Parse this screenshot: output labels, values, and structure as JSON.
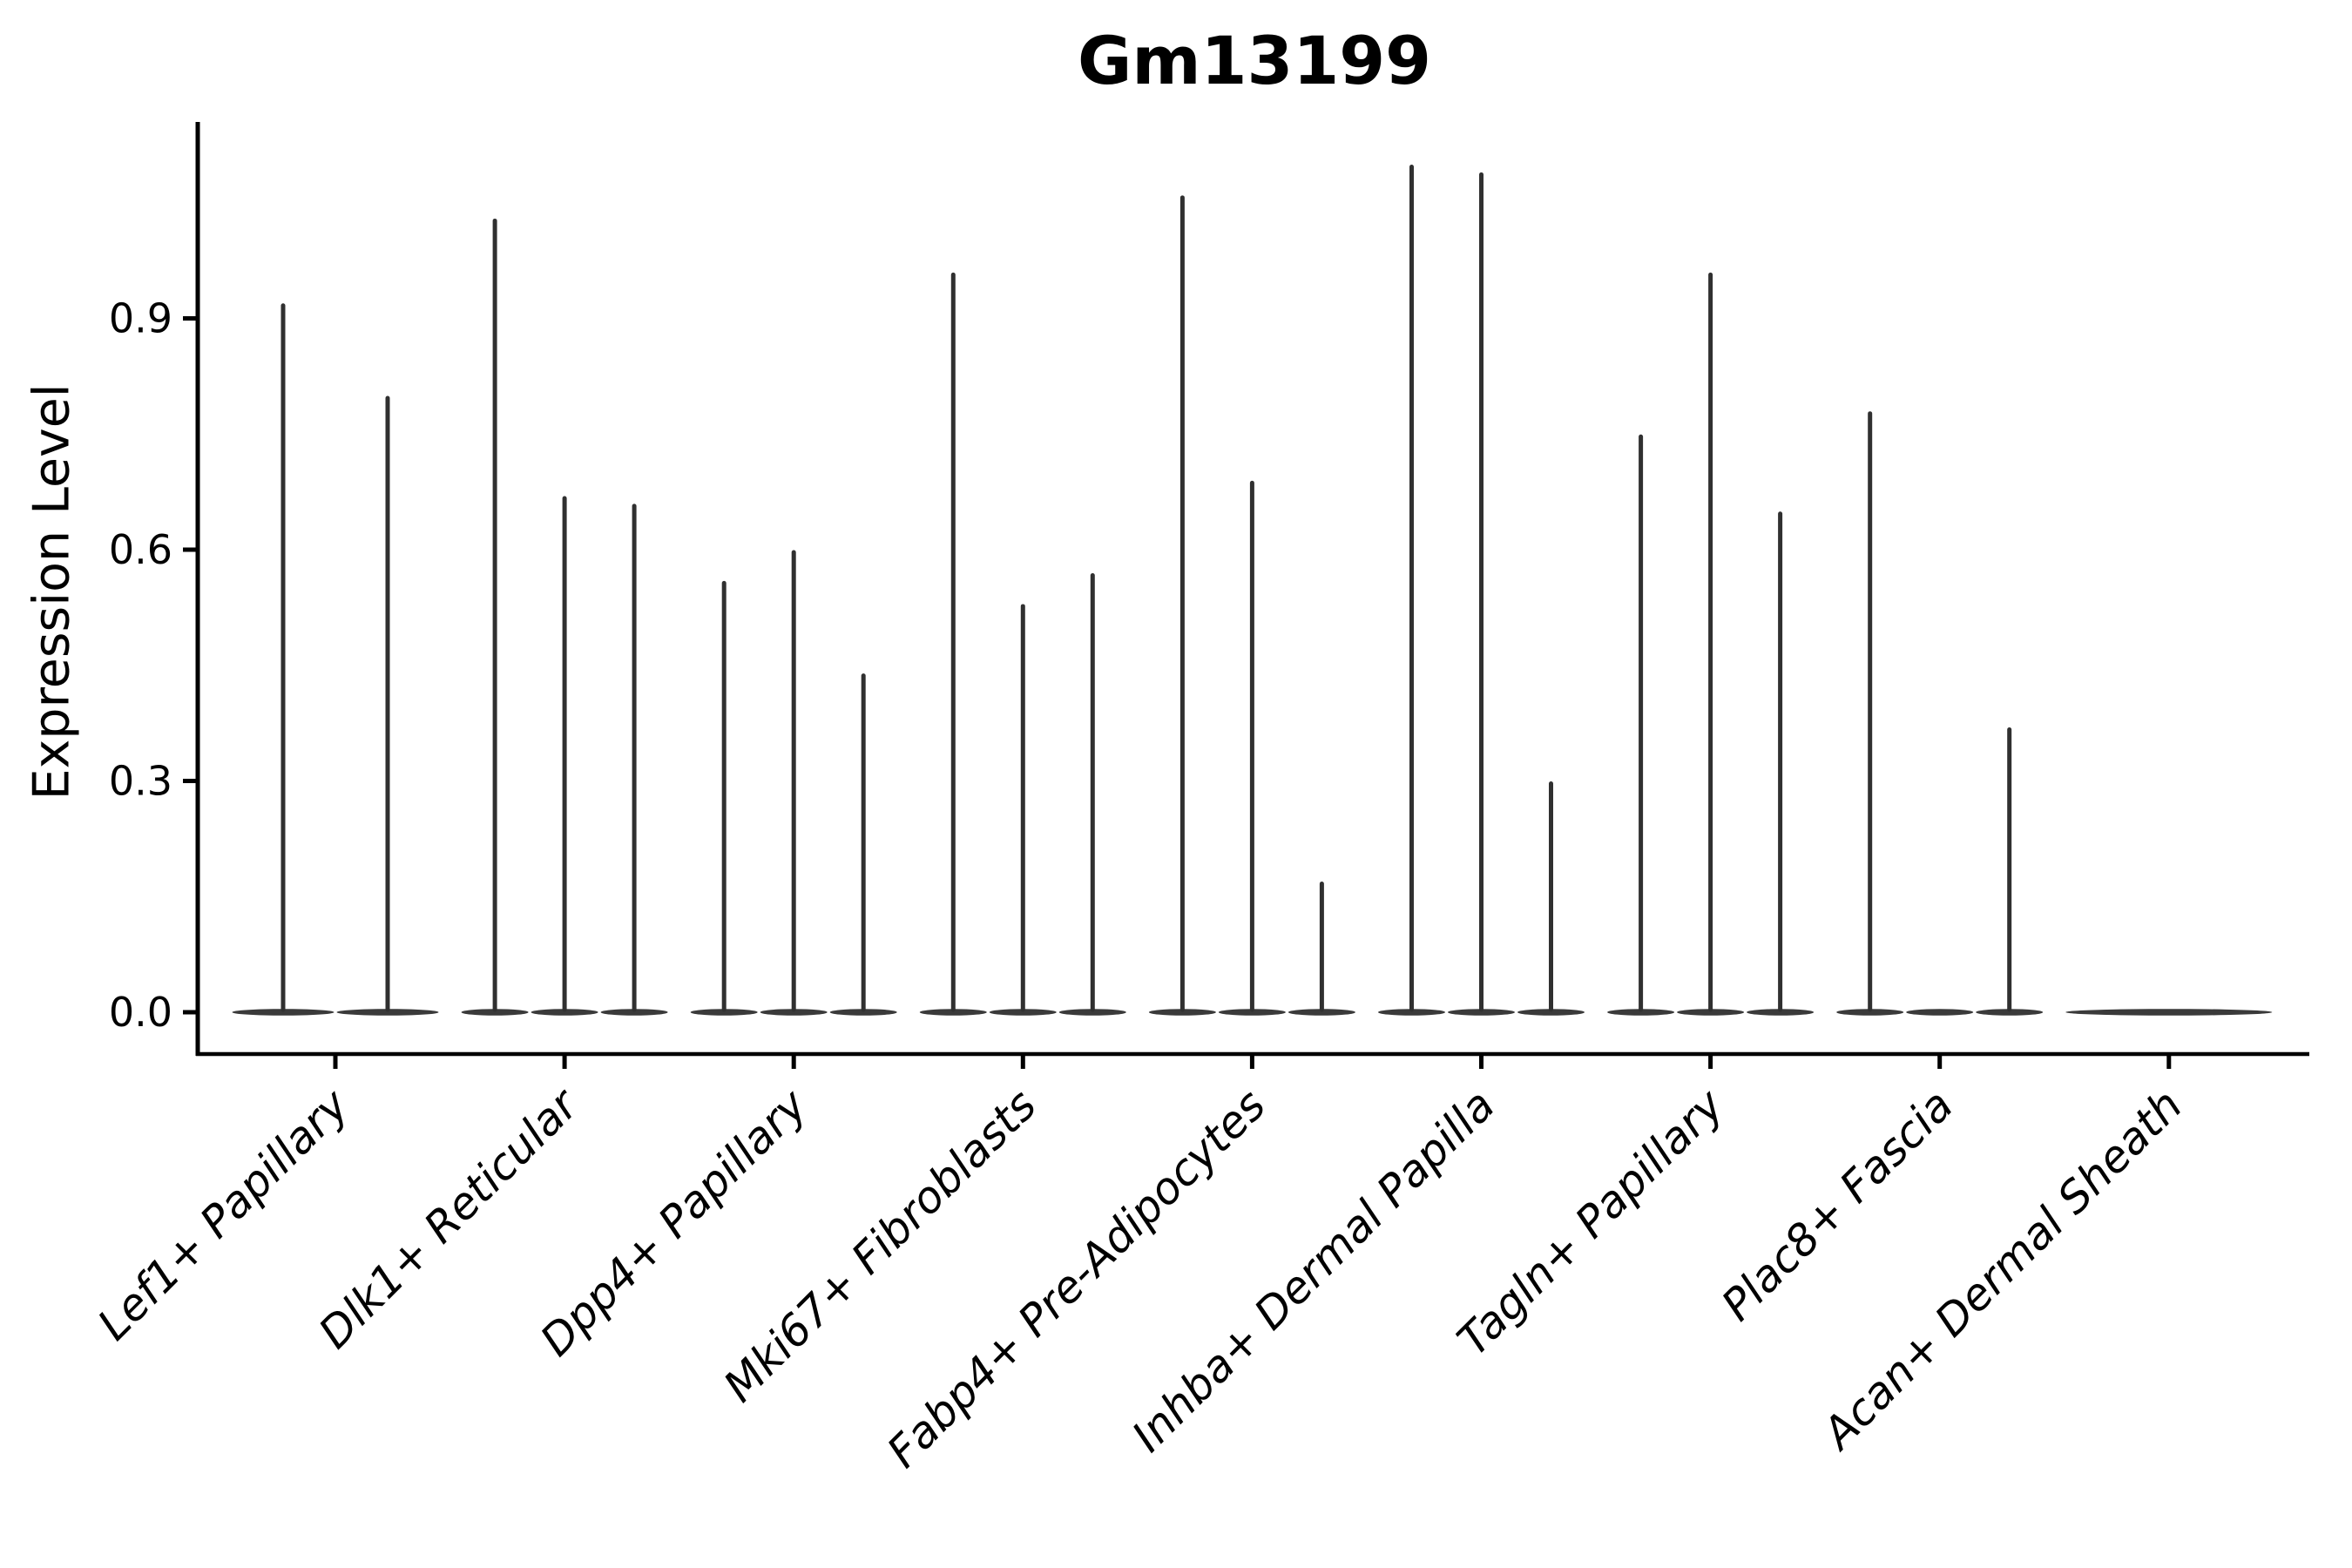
{
  "title": "Gm13199",
  "axes": {
    "ylabel": "Expression Level",
    "ytick_labels": [
      "0.0",
      "0.3",
      "0.6",
      "0.9"
    ]
  },
  "colors": {
    "background": "#ffffff",
    "axis": "#000000",
    "text": "#000000",
    "violin_spike": "#303030",
    "violin_base_fill": "#3a3a3a"
  },
  "chart_data": {
    "type": "violin",
    "title": "Gm13199",
    "xlabel": "",
    "ylabel": "Expression Level",
    "ylim": [
      0,
      1.15
    ],
    "yticks": [
      0.0,
      0.3,
      0.6,
      0.9
    ],
    "grid": false,
    "legend": "none",
    "description": "Sparse single-cell expression violins: each category shows a flat density base at 0 with thin spikes reaching the maximum expression of each sub-violin; a value of 0 means a flat violin with no spike.",
    "categories": [
      "Lef1+ Papillary",
      "Dlk1+ Reticular",
      "Dpp4+ Papillary",
      "Mki67+ Fibroblasts",
      "Fabp4+ Pre-Adipocytes",
      "Inhba+ Dermal Papilla",
      "Tagln+ Papillary",
      "Plac8+ Fascia",
      "Acan+ Dermal Sheath"
    ],
    "groups": [
      {
        "category": "Lef1+ Papillary",
        "violin_max_values": [
          0.92,
          0.8
        ]
      },
      {
        "category": "Dlk1+ Reticular",
        "violin_max_values": [
          1.03,
          0.67,
          0.66
        ]
      },
      {
        "category": "Dpp4+ Papillary",
        "violin_max_values": [
          0.56,
          0.6,
          0.44
        ]
      },
      {
        "category": "Mki67+ Fibroblasts",
        "violin_max_values": [
          0.96,
          0.53,
          0.57
        ]
      },
      {
        "category": "Fabp4+ Pre-Adipocytes",
        "violin_max_values": [
          1.06,
          0.69,
          0.17
        ]
      },
      {
        "category": "Inhba+ Dermal Papilla",
        "violin_max_values": [
          1.1,
          1.09,
          0.3
        ]
      },
      {
        "category": "Tagln+ Papillary",
        "violin_max_values": [
          0.75,
          0.96,
          0.65
        ]
      },
      {
        "category": "Plac8+ Fascia",
        "violin_max_values": [
          0.78,
          0.0,
          0.37
        ]
      },
      {
        "category": "Acan+ Dermal Sheath",
        "violin_max_values": [
          0.0
        ]
      }
    ]
  }
}
